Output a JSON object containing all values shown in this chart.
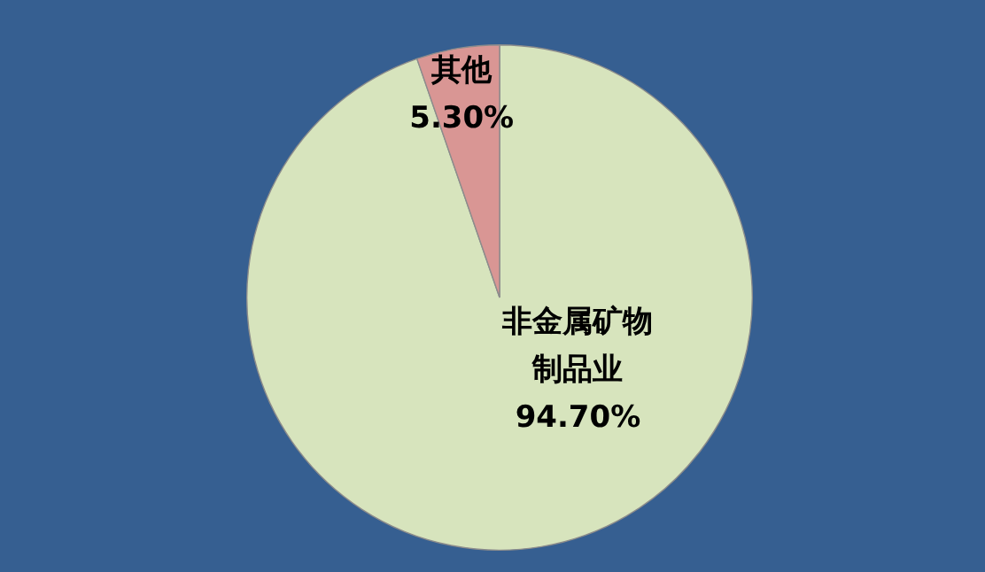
{
  "chart_data": {
    "type": "pie",
    "categories": [
      "非金属矿物制品业",
      "其他"
    ],
    "values": [
      94.7,
      5.3
    ],
    "colors": [
      "#d7e4bd",
      "#d99694"
    ],
    "value_labels": [
      "94.70%",
      "5.30%"
    ],
    "legend": false
  }
}
